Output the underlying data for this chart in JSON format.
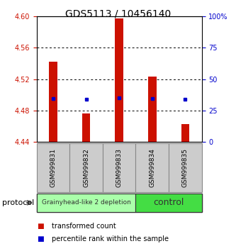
{
  "title": "GDS5113 / 10456140",
  "samples": [
    "GSM999831",
    "GSM999832",
    "GSM999833",
    "GSM999834",
    "GSM999835"
  ],
  "bar_bottoms": [
    4.44,
    4.44,
    4.44,
    4.44,
    4.44
  ],
  "bar_tops": [
    4.542,
    4.476,
    4.597,
    4.523,
    4.463
  ],
  "percentile_values": [
    4.495,
    4.494,
    4.496,
    4.495,
    4.494
  ],
  "ylim": [
    4.44,
    4.6
  ],
  "yticks_left": [
    4.44,
    4.48,
    4.52,
    4.56,
    4.6
  ],
  "yticks_right": [
    0,
    25,
    50,
    75,
    100
  ],
  "bar_color": "#cc1100",
  "dot_color": "#0000cc",
  "groups": [
    {
      "label": "Grainyhead-like 2 depletion",
      "indices": [
        0,
        1,
        2
      ],
      "color": "#aaffaa"
    },
    {
      "label": "control",
      "indices": [
        3,
        4
      ],
      "color": "#44dd44"
    }
  ],
  "protocol_label": "protocol",
  "legend_items": [
    {
      "color": "#cc1100",
      "label": "transformed count"
    },
    {
      "color": "#0000cc",
      "label": "percentile rank within the sample"
    }
  ],
  "bg_color": "#ffffff",
  "tick_label_color_left": "#cc1100",
  "tick_label_color_right": "#0000cc",
  "title_fontsize": 10,
  "bar_width": 0.25
}
